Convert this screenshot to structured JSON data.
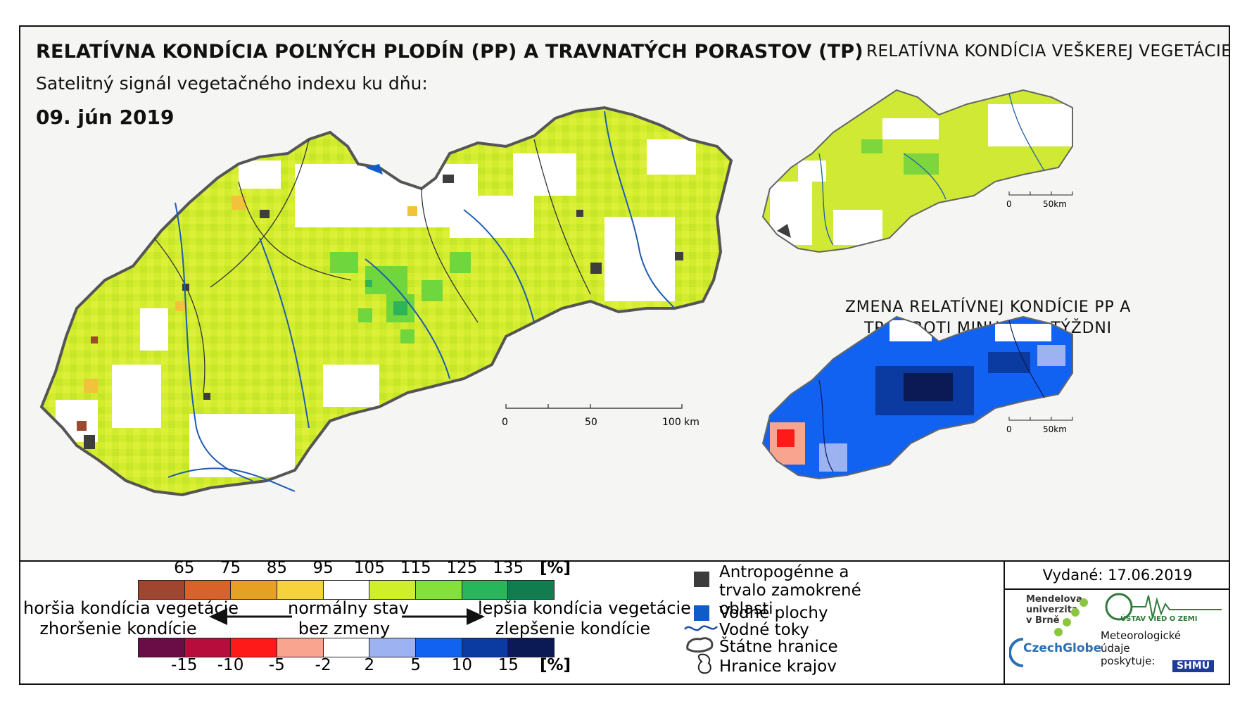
{
  "titles": {
    "main": "RELATÍVNA KONDÍCIA POĽNÝCH PLODÍN (PP) A TRAVNATÝCH PORASTOV (TP)",
    "subtitle": "Satelitný signál vegetačného indexu ku dňu:",
    "date": "09. jún 2019",
    "right": "RELATÍVNA KONDÍCIA VEŠKEREJ VEGETÁCIE",
    "change": "ZMENA RELATÍVNEJ KONDÍCIE PP A TP OPROTI MINULÉMU TÝŽDNI"
  },
  "scalebars": {
    "main": [
      "0",
      "50",
      "100 km"
    ],
    "small_top": [
      "0",
      "50km"
    ],
    "small_bottom": [
      "0",
      "50km"
    ]
  },
  "condition_scale": {
    "ticks": [
      "65",
      "75",
      "85",
      "95",
      "105",
      "115",
      "125",
      "135"
    ],
    "unit": "[%]",
    "colors": [
      "#a0452f",
      "#d9622b",
      "#e6a123",
      "#f6d33a",
      "#ffffff",
      "#cfef2a",
      "#86e03a",
      "#27b65a",
      "#117c4f"
    ]
  },
  "change_scale": {
    "ticks": [
      "-15",
      "-10",
      "-5",
      "-2",
      "2",
      "5",
      "10",
      "15"
    ],
    "unit": "[%]",
    "colors": [
      "#6a0c45",
      "#b70d3d",
      "#ff1a1a",
      "#f8a48f",
      "#ffffff",
      "#9db3f1",
      "#1262f1",
      "#0b3aa0",
      "#0b1a55"
    ]
  },
  "labels": {
    "worse": "horšia kondícia vegetácie",
    "worse_change": "zhoršenie kondície",
    "normal": "normálny stav",
    "no_change": "bez zmeny",
    "better": "lepšia kondícia vegetácie",
    "better_change": "zlepšenie kondície"
  },
  "legend": [
    {
      "icon": "anthropogenic-area-icon",
      "color": "#3c3c3c",
      "text": "Antropogénne a trvalo zamokrené oblasti"
    },
    {
      "icon": "water-body-icon",
      "color": "#0f5bc7",
      "text": "Vodné plochy"
    },
    {
      "icon": "river-icon",
      "color": "#1a4fa3",
      "text": "Vodné toky"
    },
    {
      "icon": "state-border-icon",
      "color": "#444444",
      "text": "Štátne hranice"
    },
    {
      "icon": "region-border-icon",
      "color": "#222222",
      "text": "Hranice krajov"
    }
  ],
  "issued": "Vydané: 17.06.2019",
  "logos": {
    "mendel": "Mendelova univerzita v Brně",
    "czechglobe": "CzechGlobe",
    "uvz": "ÚSTAV VIED O ZEMI",
    "meteo": "Meteorologické údaje poskytuje:",
    "shmu": "SHMÚ"
  }
}
